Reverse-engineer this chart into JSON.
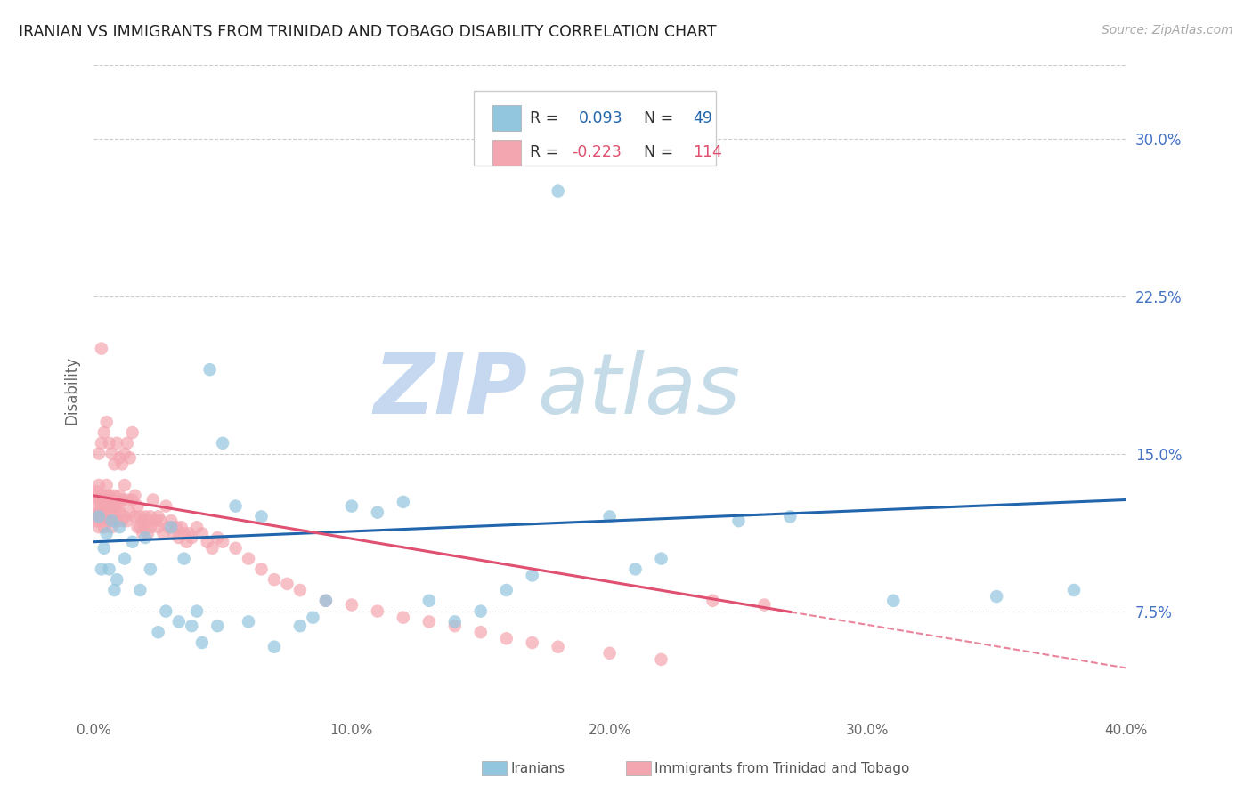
{
  "title": "IRANIAN VS IMMIGRANTS FROM TRINIDAD AND TOBAGO DISABILITY CORRELATION CHART",
  "source": "Source: ZipAtlas.com",
  "ylabel": "Disability",
  "ytick_labels": [
    "7.5%",
    "15.0%",
    "22.5%",
    "30.0%"
  ],
  "ytick_values": [
    0.075,
    0.15,
    0.225,
    0.3
  ],
  "xtick_labels": [
    "0.0%",
    "10.0%",
    "20.0%",
    "30.0%",
    "40.0%"
  ],
  "xtick_values": [
    0.0,
    0.1,
    0.2,
    0.3,
    0.4
  ],
  "xlim": [
    0.0,
    0.4
  ],
  "ylim": [
    0.025,
    0.335
  ],
  "legend_r_iranian": "0.093",
  "legend_n_iranian": "49",
  "legend_r_tt": "-0.223",
  "legend_n_tt": "114",
  "color_iranian": "#92c5de",
  "color_tt": "#f4a6b0",
  "color_iranian_line": "#2166ac",
  "color_tt_line": "#e05070",
  "watermark_zip": "ZIP",
  "watermark_atlas": "atlas",
  "watermark_color_zip": "#c5d8ef",
  "watermark_color_atlas": "#c5dce8",
  "iranian_line_y0": 0.108,
  "iranian_line_y1": 0.128,
  "tt_line_y0": 0.13,
  "tt_line_y1": 0.048,
  "tt_line_solid_x1": 0.27,
  "iranian_scatter_x": [
    0.002,
    0.003,
    0.004,
    0.005,
    0.006,
    0.007,
    0.008,
    0.009,
    0.01,
    0.012,
    0.015,
    0.018,
    0.02,
    0.022,
    0.025,
    0.028,
    0.03,
    0.033,
    0.035,
    0.038,
    0.04,
    0.042,
    0.045,
    0.048,
    0.05,
    0.055,
    0.06,
    0.065,
    0.07,
    0.08,
    0.085,
    0.09,
    0.1,
    0.11,
    0.12,
    0.13,
    0.14,
    0.15,
    0.16,
    0.17,
    0.18,
    0.2,
    0.21,
    0.22,
    0.25,
    0.27,
    0.31,
    0.35,
    0.38
  ],
  "iranian_scatter_y": [
    0.12,
    0.095,
    0.105,
    0.112,
    0.095,
    0.118,
    0.085,
    0.09,
    0.115,
    0.1,
    0.108,
    0.085,
    0.11,
    0.095,
    0.065,
    0.075,
    0.115,
    0.07,
    0.1,
    0.068,
    0.075,
    0.06,
    0.19,
    0.068,
    0.155,
    0.125,
    0.07,
    0.12,
    0.058,
    0.068,
    0.072,
    0.08,
    0.125,
    0.122,
    0.127,
    0.08,
    0.07,
    0.075,
    0.085,
    0.092,
    0.275,
    0.12,
    0.095,
    0.1,
    0.118,
    0.12,
    0.08,
    0.082,
    0.085
  ],
  "tt_scatter_x": [
    0.0,
    0.0,
    0.001,
    0.001,
    0.001,
    0.002,
    0.002,
    0.002,
    0.002,
    0.003,
    0.003,
    0.003,
    0.003,
    0.004,
    0.004,
    0.004,
    0.005,
    0.005,
    0.005,
    0.005,
    0.006,
    0.006,
    0.006,
    0.007,
    0.007,
    0.007,
    0.008,
    0.008,
    0.008,
    0.009,
    0.009,
    0.01,
    0.01,
    0.01,
    0.011,
    0.011,
    0.012,
    0.012,
    0.013,
    0.013,
    0.014,
    0.015,
    0.015,
    0.016,
    0.016,
    0.017,
    0.017,
    0.018,
    0.018,
    0.019,
    0.019,
    0.02,
    0.02,
    0.021,
    0.021,
    0.022,
    0.022,
    0.023,
    0.024,
    0.025,
    0.025,
    0.026,
    0.027,
    0.028,
    0.029,
    0.03,
    0.031,
    0.032,
    0.033,
    0.034,
    0.035,
    0.036,
    0.037,
    0.038,
    0.04,
    0.042,
    0.044,
    0.046,
    0.048,
    0.05,
    0.055,
    0.06,
    0.065,
    0.07,
    0.075,
    0.08,
    0.09,
    0.1,
    0.11,
    0.12,
    0.13,
    0.14,
    0.15,
    0.16,
    0.17,
    0.18,
    0.2,
    0.22,
    0.24,
    0.26,
    0.002,
    0.003,
    0.004,
    0.005,
    0.006,
    0.007,
    0.008,
    0.009,
    0.01,
    0.011,
    0.012,
    0.013,
    0.014,
    0.003
  ],
  "tt_scatter_y": [
    0.13,
    0.12,
    0.125,
    0.132,
    0.118,
    0.128,
    0.122,
    0.115,
    0.135,
    0.12,
    0.125,
    0.13,
    0.118,
    0.122,
    0.128,
    0.115,
    0.13,
    0.125,
    0.12,
    0.135,
    0.125,
    0.13,
    0.118,
    0.122,
    0.128,
    0.115,
    0.125,
    0.13,
    0.12,
    0.125,
    0.118,
    0.13,
    0.122,
    0.125,
    0.118,
    0.128,
    0.135,
    0.12,
    0.128,
    0.118,
    0.122,
    0.16,
    0.128,
    0.13,
    0.12,
    0.115,
    0.125,
    0.12,
    0.115,
    0.118,
    0.112,
    0.12,
    0.115,
    0.118,
    0.112,
    0.12,
    0.115,
    0.128,
    0.118,
    0.12,
    0.115,
    0.118,
    0.112,
    0.125,
    0.115,
    0.118,
    0.112,
    0.115,
    0.11,
    0.115,
    0.112,
    0.108,
    0.112,
    0.11,
    0.115,
    0.112,
    0.108,
    0.105,
    0.11,
    0.108,
    0.105,
    0.1,
    0.095,
    0.09,
    0.088,
    0.085,
    0.08,
    0.078,
    0.075,
    0.072,
    0.07,
    0.068,
    0.065,
    0.062,
    0.06,
    0.058,
    0.055,
    0.052,
    0.08,
    0.078,
    0.15,
    0.155,
    0.16,
    0.165,
    0.155,
    0.15,
    0.145,
    0.155,
    0.148,
    0.145,
    0.15,
    0.155,
    0.148,
    0.2
  ]
}
